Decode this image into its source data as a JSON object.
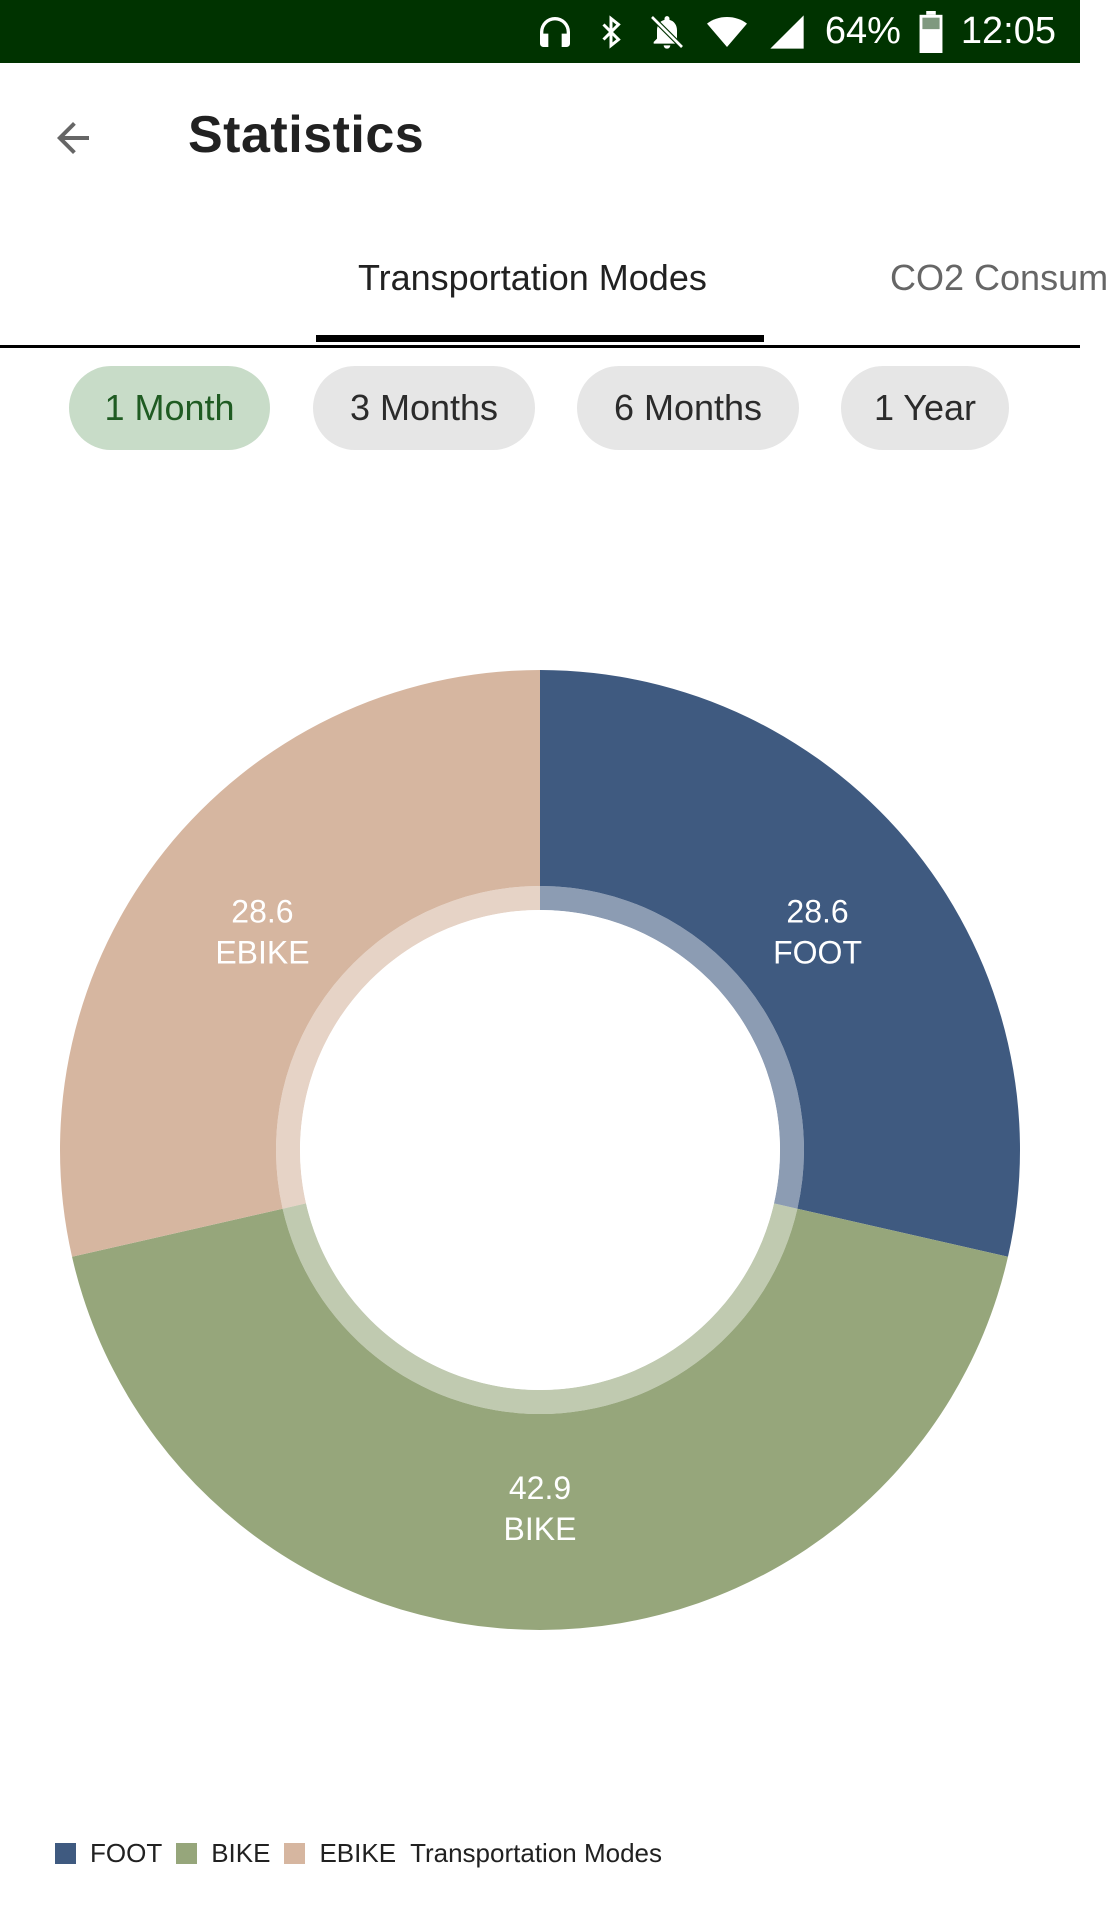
{
  "status_bar": {
    "battery": "64%",
    "time": "12:05",
    "icons": [
      "headphones-icon",
      "bluetooth-icon",
      "notifications-off-icon",
      "wifi-icon",
      "signal-icon",
      "battery-icon"
    ]
  },
  "app_bar": {
    "title": "Statistics",
    "back_icon": "arrow-back-icon"
  },
  "tabs": [
    {
      "label": "Transportation Modes",
      "selected": true
    },
    {
      "label": "CO2 Consum",
      "selected": false
    }
  ],
  "chips": [
    {
      "label": "1 Month",
      "selected": true
    },
    {
      "label": "3 Months",
      "selected": false
    },
    {
      "label": "6 Months",
      "selected": false
    },
    {
      "label": "1 Year",
      "selected": false
    }
  ],
  "colors": {
    "status_bar": "#003300",
    "selected_chip_bg": "#c8dcc8",
    "selected_chip_text": "#1f5b22",
    "chip_bg": "#e6e6e6"
  },
  "chart_data": {
    "type": "pie",
    "variant": "donut",
    "categories": [
      "FOOT",
      "BIKE",
      "EBIKE"
    ],
    "values": [
      28.6,
      42.9,
      28.6
    ],
    "colors": [
      "#3f5a80",
      "#96a67b",
      "#d6b6a0"
    ],
    "slice_labels": [
      "28.6",
      "42.9",
      "28.6"
    ],
    "legend_title": "Transportation Modes",
    "legend_position": "bottom-left"
  }
}
